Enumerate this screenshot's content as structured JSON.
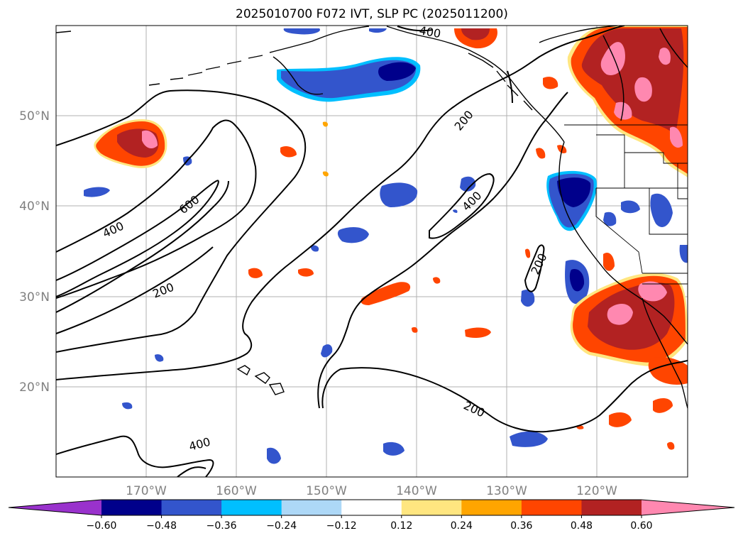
{
  "title": "2025010700 F072 IVT, SLP PC (2025011200)",
  "map": {
    "lat_labels": [
      "50°N",
      "40°N",
      "30°N",
      "20°N"
    ],
    "lon_labels": [
      "170°W",
      "160°W",
      "150°W",
      "140°W",
      "130°W",
      "120°W"
    ],
    "contour_labels": [
      "400",
      "600",
      "200",
      "200",
      "400",
      "200",
      "200",
      "400",
      "400"
    ]
  },
  "colorbar": {
    "ticks": [
      "−0.60",
      "−0.48",
      "−0.36",
      "−0.24",
      "−0.12",
      "0.12",
      "0.24",
      "0.36",
      "0.48",
      "0.60"
    ],
    "colors": [
      "#9932cc",
      "#00008b",
      "#3355cc",
      "#00bfff",
      "#add8f7",
      "#ffffff",
      "#ffe680",
      "#ffa500",
      "#ff4500",
      "#b22222",
      "#ff88b0"
    ]
  }
}
